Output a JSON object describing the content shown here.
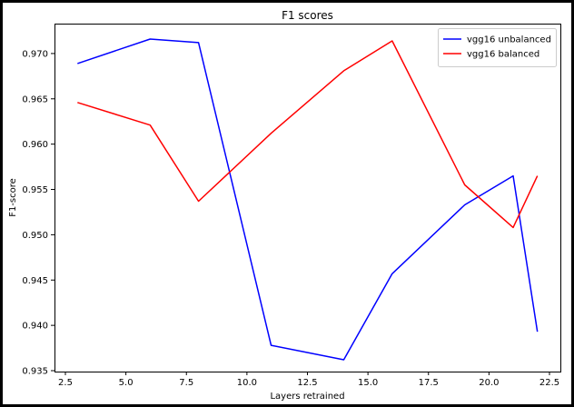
{
  "chart_data": {
    "type": "line",
    "title": "F1 scores",
    "xlabel": "Layers retrained",
    "ylabel": "F1-score",
    "xlim": [
      2.05,
      22.95
    ],
    "ylim": [
      0.9349,
      0.9733
    ],
    "xticks": [
      "2.5",
      "5.0",
      "7.5",
      "10.0",
      "12.5",
      "15.0",
      "17.5",
      "20.0",
      "22.5"
    ],
    "xtick_values": [
      2.5,
      5.0,
      7.5,
      10.0,
      12.5,
      15.0,
      17.5,
      20.0,
      22.5
    ],
    "yticks": [
      "0.935",
      "0.940",
      "0.945",
      "0.950",
      "0.955",
      "0.960",
      "0.965",
      "0.970"
    ],
    "ytick_values": [
      0.935,
      0.94,
      0.945,
      0.95,
      0.955,
      0.96,
      0.965,
      0.97
    ],
    "grid": false,
    "legend_position": "top-right",
    "series": [
      {
        "name": "vgg16 unbalanced",
        "color": "#0000ff",
        "x": [
          3,
          6,
          8,
          11,
          14,
          16,
          19,
          21,
          22
        ],
        "y": [
          0.9689,
          0.9716,
          0.9712,
          0.9378,
          0.9362,
          0.9457,
          0.9533,
          0.9565,
          0.9393
        ]
      },
      {
        "name": "vgg16 balanced",
        "color": "#ff0000",
        "x": [
          3,
          6,
          8,
          11,
          14,
          16,
          19,
          21,
          22
        ],
        "y": [
          0.9646,
          0.9621,
          0.9537,
          0.9612,
          0.9681,
          0.9714,
          0.9555,
          0.9508,
          0.9565
        ]
      }
    ]
  }
}
